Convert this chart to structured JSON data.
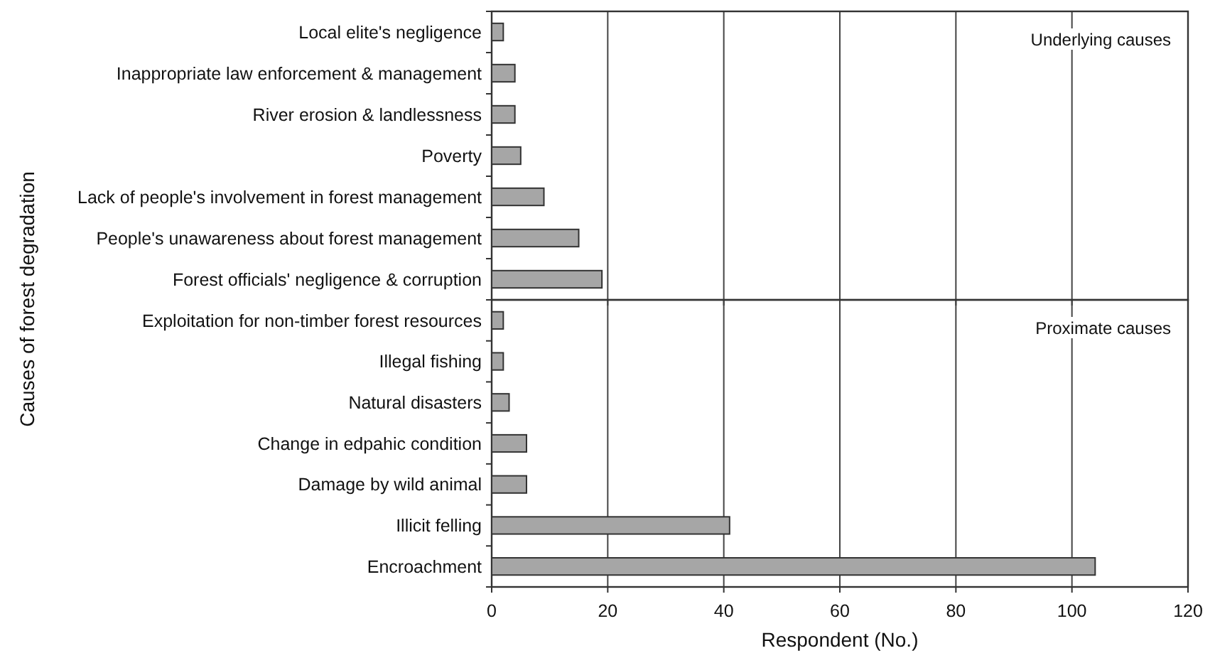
{
  "chart_data": [
    {
      "type": "bar",
      "orientation": "horizontal",
      "ylabel": "Causes of forest degradation",
      "annotations": [
        "Underlying causes"
      ],
      "categories": [
        "Local elite's negligence",
        "Inappropriate law enforcement & management",
        "River erosion & landlessness",
        "Poverty",
        "Lack of people's involvement in forest management",
        "People's unawareness about forest management",
        "Forest officials' negligence & corruption"
      ],
      "values": [
        2,
        4,
        4,
        5,
        9,
        15,
        19
      ],
      "color": "#a6a6a6",
      "xlim": [
        0,
        120
      ],
      "xticks": [
        0,
        20,
        40,
        60,
        80,
        100,
        120
      ],
      "grid": "x",
      "tick_labels": "y"
    },
    {
      "type": "bar",
      "orientation": "horizontal",
      "xlabel": "Respondent (No.)",
      "annotations": [
        "Proximate causes"
      ],
      "categories": [
        "Exploitation for non-timber forest resources",
        "Illegal fishing",
        "Natural disasters",
        "Change in edpahic condition",
        "Damage by wild animal",
        "Illicit felling",
        "Encroachment"
      ],
      "values": [
        2,
        2,
        3,
        6,
        6,
        41,
        104
      ],
      "color": "#a6a6a6",
      "xlim": [
        0,
        120
      ],
      "xticks": [
        0,
        20,
        40,
        60,
        80,
        100,
        120
      ],
      "grid": "x"
    }
  ]
}
